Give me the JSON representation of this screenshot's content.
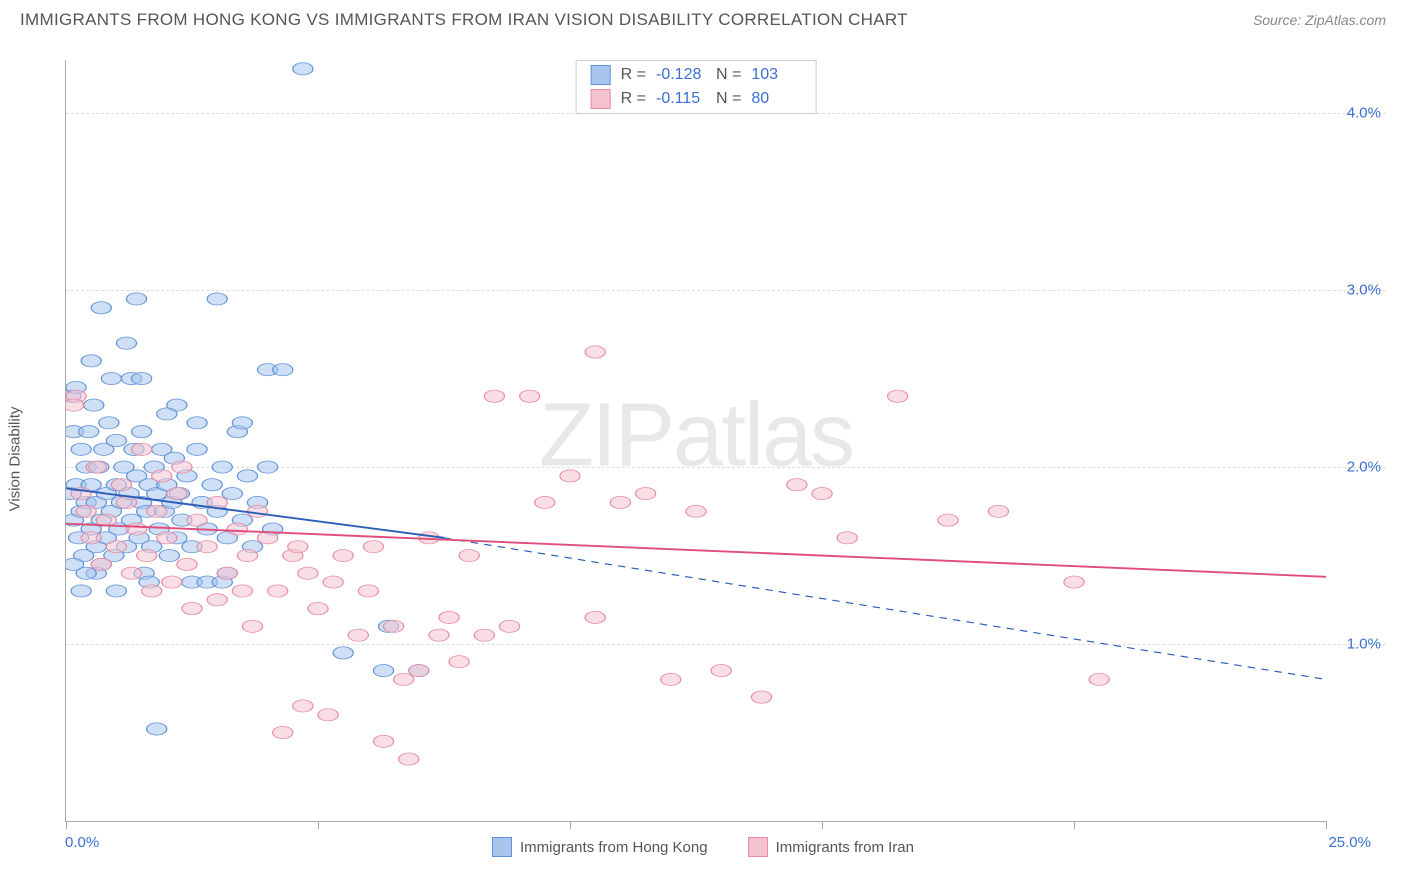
{
  "title": "IMMIGRANTS FROM HONG KONG VS IMMIGRANTS FROM IRAN VISION DISABILITY CORRELATION CHART",
  "source_prefix": "Source: ",
  "source_name": "ZipAtlas.com",
  "y_axis_label": "Vision Disability",
  "watermark_bold": "ZIP",
  "watermark_thin": "atlas",
  "chart": {
    "type": "scatter-with-regression",
    "background_color": "#ffffff",
    "grid_color": "#dddddd",
    "axis_color": "#aaaaaa",
    "xlim": [
      0,
      25
    ],
    "ylim": [
      0,
      4.3
    ],
    "x_tick_positions": [
      0,
      5,
      10,
      15,
      20,
      25
    ],
    "x_tick_labels": {
      "left": "0.0%",
      "right": "25.0%"
    },
    "y_gridlines": [
      1.0,
      2.0,
      3.0,
      4.0
    ],
    "y_tick_labels": [
      "1.0%",
      "2.0%",
      "3.0%",
      "4.0%"
    ],
    "marker_radius": 8,
    "marker_opacity": 0.55,
    "line_width": 2.5,
    "series": [
      {
        "name": "Immigrants from Hong Kong",
        "fill_color": "#a8c5ed",
        "stroke_color": "#5f92d8",
        "line_color": "#2a5db8",
        "R": "-0.128",
        "N": "103",
        "regression": {
          "x1": 0,
          "y1": 1.88,
          "x2": 7.5,
          "y2": 1.6,
          "x_solid_end": 7.5,
          "x3": 25,
          "y3": 0.8
        },
        "points": [
          [
            0.1,
            1.85
          ],
          [
            0.1,
            2.4
          ],
          [
            0.15,
            2.2
          ],
          [
            0.15,
            1.7
          ],
          [
            0.2,
            2.45
          ],
          [
            0.2,
            1.9
          ],
          [
            0.25,
            1.6
          ],
          [
            0.3,
            2.1
          ],
          [
            0.3,
            1.75
          ],
          [
            0.35,
            1.5
          ],
          [
            0.4,
            1.8
          ],
          [
            0.4,
            2.0
          ],
          [
            0.45,
            2.2
          ],
          [
            0.5,
            1.9
          ],
          [
            0.5,
            1.65
          ],
          [
            0.55,
            2.35
          ],
          [
            0.6,
            1.55
          ],
          [
            0.6,
            1.8
          ],
          [
            0.65,
            2.0
          ],
          [
            0.7,
            1.7
          ],
          [
            0.7,
            1.45
          ],
          [
            0.75,
            2.1
          ],
          [
            0.8,
            1.85
          ],
          [
            0.8,
            1.6
          ],
          [
            0.85,
            2.25
          ],
          [
            0.9,
            1.75
          ],
          [
            0.95,
            1.5
          ],
          [
            1.0,
            1.9
          ],
          [
            1.0,
            2.15
          ],
          [
            1.05,
            1.65
          ],
          [
            1.1,
            1.8
          ],
          [
            1.15,
            2.0
          ],
          [
            1.2,
            1.55
          ],
          [
            1.25,
            1.85
          ],
          [
            1.3,
            1.7
          ],
          [
            1.35,
            2.1
          ],
          [
            1.4,
            1.95
          ],
          [
            1.45,
            1.6
          ],
          [
            1.5,
            1.8
          ],
          [
            1.5,
            2.2
          ],
          [
            1.55,
            1.4
          ],
          [
            1.6,
            1.75
          ],
          [
            1.65,
            1.9
          ],
          [
            1.7,
            1.55
          ],
          [
            1.75,
            2.0
          ],
          [
            1.8,
            1.85
          ],
          [
            1.85,
            1.65
          ],
          [
            1.9,
            2.1
          ],
          [
            1.95,
            1.75
          ],
          [
            2.0,
            1.9
          ],
          [
            2.05,
            1.5
          ],
          [
            2.1,
            1.8
          ],
          [
            2.15,
            2.05
          ],
          [
            2.2,
            1.6
          ],
          [
            2.25,
            1.85
          ],
          [
            2.3,
            1.7
          ],
          [
            2.4,
            1.95
          ],
          [
            2.5,
            1.55
          ],
          [
            2.6,
            2.1
          ],
          [
            2.7,
            1.8
          ],
          [
            2.8,
            1.65
          ],
          [
            2.9,
            1.9
          ],
          [
            3.0,
            1.75
          ],
          [
            3.1,
            2.0
          ],
          [
            3.2,
            1.6
          ],
          [
            3.3,
            1.85
          ],
          [
            3.4,
            2.2
          ],
          [
            3.5,
            1.7
          ],
          [
            3.6,
            1.95
          ],
          [
            3.7,
            1.55
          ],
          [
            3.8,
            1.8
          ],
          [
            4.0,
            2.0
          ],
          [
            4.0,
            2.55
          ],
          [
            4.1,
            1.65
          ],
          [
            4.3,
            2.55
          ],
          [
            1.4,
            2.95
          ],
          [
            3.0,
            2.95
          ],
          [
            4.7,
            4.25
          ],
          [
            1.65,
            1.35
          ],
          [
            2.5,
            1.35
          ],
          [
            2.8,
            1.35
          ],
          [
            3.1,
            1.35
          ],
          [
            0.6,
            1.4
          ],
          [
            1.8,
            0.52
          ],
          [
            5.5,
            0.95
          ],
          [
            6.3,
            0.85
          ],
          [
            6.4,
            1.1
          ],
          [
            7.0,
            0.85
          ],
          [
            1.3,
            2.5
          ],
          [
            2.2,
            2.35
          ],
          [
            0.9,
            2.5
          ],
          [
            3.5,
            2.25
          ],
          [
            0.3,
            1.3
          ],
          [
            1.0,
            1.3
          ],
          [
            1.5,
            2.5
          ],
          [
            2.0,
            2.3
          ],
          [
            0.5,
            2.6
          ],
          [
            0.7,
            2.9
          ],
          [
            1.2,
            2.7
          ],
          [
            0.4,
            1.4
          ],
          [
            2.6,
            2.25
          ],
          [
            3.2,
            1.4
          ],
          [
            0.15,
            1.45
          ]
        ]
      },
      {
        "name": "Immigrants from Iran",
        "fill_color": "#f4c2cf",
        "stroke_color": "#e88ba3",
        "line_color": "#e04d78",
        "R": "-0.115",
        "N": "80",
        "regression": {
          "x1": 0,
          "y1": 1.68,
          "x2": 25,
          "y2": 1.38
        },
        "points": [
          [
            0.2,
            2.4
          ],
          [
            0.3,
            1.85
          ],
          [
            0.5,
            1.6
          ],
          [
            0.6,
            2.0
          ],
          [
            0.8,
            1.7
          ],
          [
            1.0,
            1.55
          ],
          [
            1.2,
            1.8
          ],
          [
            1.4,
            1.65
          ],
          [
            1.5,
            2.1
          ],
          [
            1.6,
            1.5
          ],
          [
            1.8,
            1.75
          ],
          [
            2.0,
            1.6
          ],
          [
            2.2,
            1.85
          ],
          [
            2.4,
            1.45
          ],
          [
            2.6,
            1.7
          ],
          [
            2.8,
            1.55
          ],
          [
            3.0,
            1.8
          ],
          [
            3.2,
            1.4
          ],
          [
            3.4,
            1.65
          ],
          [
            3.6,
            1.5
          ],
          [
            3.8,
            1.75
          ],
          [
            4.0,
            1.6
          ],
          [
            4.2,
            1.3
          ],
          [
            4.5,
            1.5
          ],
          [
            4.7,
            0.65
          ],
          [
            4.8,
            1.4
          ],
          [
            5.0,
            1.2
          ],
          [
            5.2,
            0.6
          ],
          [
            5.5,
            1.5
          ],
          [
            5.8,
            1.05
          ],
          [
            6.0,
            1.3
          ],
          [
            6.3,
            0.45
          ],
          [
            6.5,
            1.1
          ],
          [
            6.7,
            0.8
          ],
          [
            6.8,
            0.35
          ],
          [
            7.0,
            0.85
          ],
          [
            7.2,
            1.6
          ],
          [
            7.4,
            1.05
          ],
          [
            7.6,
            1.15
          ],
          [
            7.8,
            0.9
          ],
          [
            8.0,
            1.5
          ],
          [
            8.3,
            1.05
          ],
          [
            8.5,
            2.4
          ],
          [
            8.8,
            1.1
          ],
          [
            9.2,
            2.4
          ],
          [
            9.5,
            1.8
          ],
          [
            10.0,
            1.95
          ],
          [
            10.5,
            1.15
          ],
          [
            10.5,
            2.65
          ],
          [
            11.0,
            1.8
          ],
          [
            11.5,
            1.85
          ],
          [
            12.0,
            0.8
          ],
          [
            12.5,
            1.75
          ],
          [
            13.0,
            0.85
          ],
          [
            13.8,
            0.7
          ],
          [
            14.5,
            1.9
          ],
          [
            15.0,
            1.85
          ],
          [
            15.5,
            1.6
          ],
          [
            16.5,
            2.4
          ],
          [
            17.5,
            1.7
          ],
          [
            18.5,
            1.75
          ],
          [
            20.0,
            1.35
          ],
          [
            20.5,
            0.8
          ],
          [
            4.3,
            0.5
          ],
          [
            2.5,
            1.2
          ],
          [
            3.0,
            1.25
          ],
          [
            3.5,
            1.3
          ],
          [
            1.7,
            1.3
          ],
          [
            2.1,
            1.35
          ],
          [
            3.7,
            1.1
          ],
          [
            4.6,
            1.55
          ],
          [
            5.3,
            1.35
          ],
          [
            6.1,
            1.55
          ],
          [
            1.1,
            1.9
          ],
          [
            1.3,
            1.4
          ],
          [
            0.4,
            1.75
          ],
          [
            0.15,
            2.35
          ],
          [
            0.7,
            1.45
          ],
          [
            2.3,
            2.0
          ],
          [
            1.9,
            1.95
          ]
        ]
      }
    ]
  }
}
